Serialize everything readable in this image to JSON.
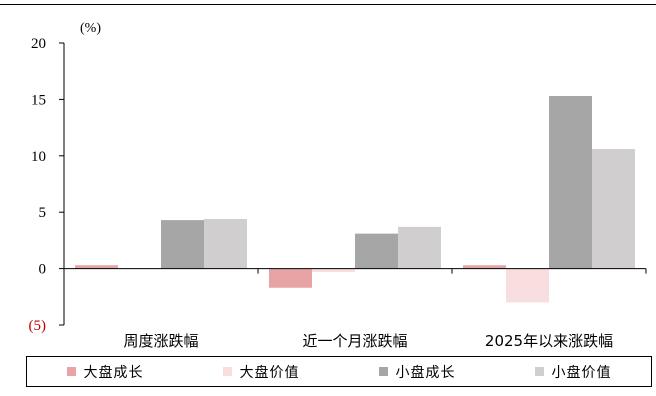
{
  "chart_data": {
    "type": "bar",
    "unit_label": "(%)",
    "categories": [
      "周度涨跌幅",
      "近一个月涨跌幅",
      "2025年以来涨跌幅"
    ],
    "y_ticks": [
      {
        "value": 20,
        "label": "20"
      },
      {
        "value": 15,
        "label": "15"
      },
      {
        "value": 10,
        "label": "10"
      },
      {
        "value": 5,
        "label": "5"
      },
      {
        "value": 0,
        "label": "0"
      },
      {
        "value": -5,
        "label": "(5)"
      }
    ],
    "ylim": [
      -5,
      20
    ],
    "grid": false,
    "legend_position": "bottom",
    "series": [
      {
        "name": "大盘成长",
        "color": "#e8a4a4",
        "values": [
          0.3,
          -1.7,
          0.3
        ]
      },
      {
        "name": "大盘价值",
        "color": "#f8dede",
        "values": [
          0.0,
          -0.3,
          -3.0
        ]
      },
      {
        "name": "小盘成长",
        "color": "#a6a6a6",
        "values": [
          4.3,
          3.1,
          15.3
        ]
      },
      {
        "name": "小盘价值",
        "color": "#d0cecf",
        "values": [
          4.4,
          3.7,
          10.6
        ]
      }
    ],
    "negative_tick_color": "#c00000"
  }
}
